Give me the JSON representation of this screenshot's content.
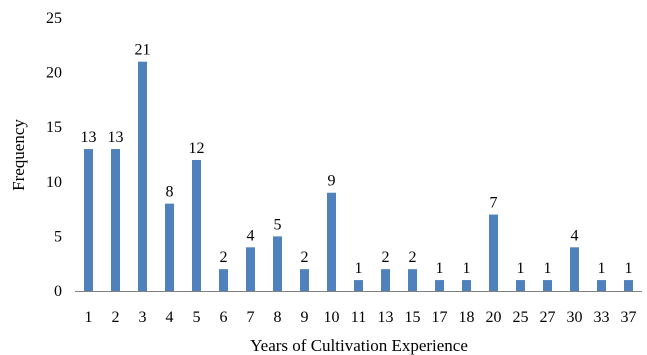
{
  "chart_data": {
    "type": "bar",
    "title": "",
    "xlabel": "Years of Cultivation Experience",
    "ylabel": "Frequency",
    "ylim": [
      0,
      25
    ],
    "yticks": [
      0,
      5,
      10,
      15,
      20,
      25
    ],
    "grid": false,
    "legend": "none",
    "categories": [
      "1",
      "2",
      "3",
      "4",
      "5",
      "6",
      "7",
      "8",
      "9",
      "10",
      "11",
      "13",
      "15",
      "17",
      "18",
      "20",
      "25",
      "27",
      "30",
      "33",
      "37"
    ],
    "values": [
      13,
      13,
      21,
      8,
      12,
      2,
      4,
      5,
      2,
      9,
      1,
      2,
      2,
      1,
      1,
      7,
      1,
      1,
      4,
      1,
      1
    ],
    "bar_color": "#4f81bd"
  }
}
